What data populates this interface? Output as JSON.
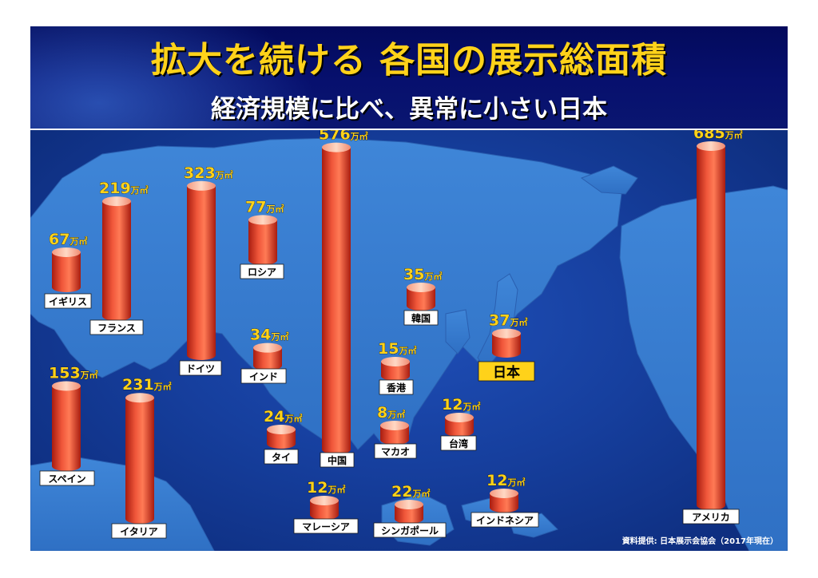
{
  "header": {
    "title": "拡大を続ける 各国の展示総面積",
    "subtitle": "経済規模に比べ、異常に小さい日本"
  },
  "source": "資料提供: 日本展示会協会（2017年現在）",
  "colors": {
    "title": "#ffd21a",
    "cylinder": "#e8452a",
    "cylinder_top": "#ffc6a6",
    "label_bg": "#ffffff",
    "japan_label_bg": "#ffd21a"
  },
  "chart_data": {
    "type": "bar",
    "unit": "万㎡",
    "categories": [
      "イギリス",
      "フランス",
      "ドイツ",
      "ロシア",
      "スペイン",
      "イタリア",
      "インド",
      "タイ",
      "中国",
      "マレーシア",
      "韓国",
      "香港",
      "マカオ",
      "シンガポール",
      "台湾",
      "日本",
      "インドネシア",
      "アメリカ"
    ],
    "values": [
      67,
      219,
      323,
      77,
      153,
      231,
      34,
      24,
      576,
      12,
      35,
      15,
      8,
      22,
      12,
      37,
      12,
      685
    ]
  }
}
